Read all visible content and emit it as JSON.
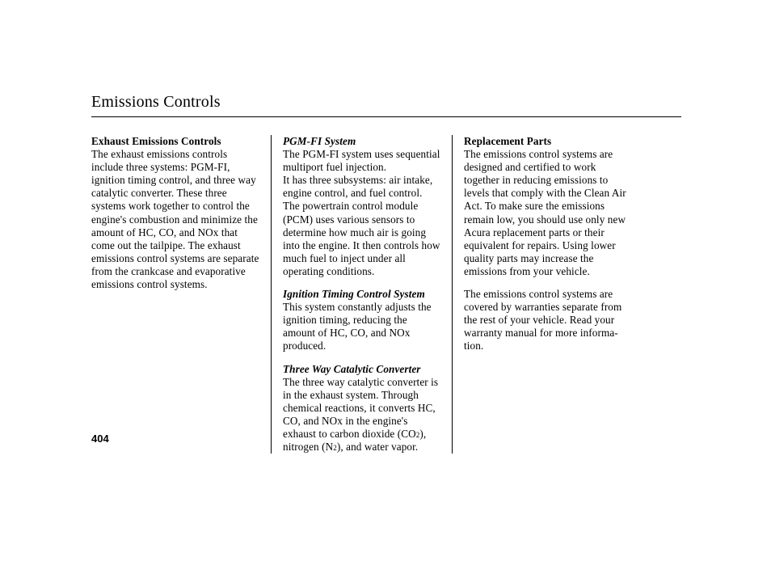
{
  "title": "Emissions Controls",
  "page_number": "404",
  "col1": {
    "h1": "Exhaust Emissions Controls",
    "p1": "The exhaust emissions controls include three systems: PGM-FI, ignition timing control, and three way catalytic converter. These three systems work together to control the engine's combustion and minimize the amount of HC, CO, and NOx that come out the tailpipe. The exhaust emissions control systems are separate from the crankcase and evaporative emissions control systems."
  },
  "col2": {
    "h1": "PGM-FI System",
    "p1a": "The PGM-FI system uses sequential multiport fuel injection.",
    "p1b": "It has three subsystems: air intake, engine control, and fuel control. The powertrain control module (PCM) uses various sensors to determine how much air is going into the engine. It then controls how much fuel to inject under all operating conditions.",
    "h2": "Ignition Timing Control System",
    "p2": "This system constantly adjusts the ignition timing, reducing the amount of HC, CO, and NOx produced.",
    "h3": "Three Way Catalytic Converter",
    "p3a": "The three way catalytic converter is in the exhaust system. Through chemical reactions, it converts HC, CO, and NOx in the engine's exhaust to carbon dioxide (CO",
    "p3b": "), nitrogen (N",
    "p3c": "), and water vapor.",
    "sub2": "2",
    "sub2b": "2"
  },
  "col3": {
    "h1": "Replacement Parts",
    "p1": "The emissions control systems are designed and certified to work together in reducing emissions to levels that comply with the Clean Air Act. To make sure the emissions remain low, you should use only new Acura replacement parts or their equivalent for repairs. Using lower quality parts may increase the emissions from your vehicle.",
    "p2": "The emissions control systems are covered by warranties separate from the rest of your vehicle. Read your warranty manual for more informa­tion."
  }
}
